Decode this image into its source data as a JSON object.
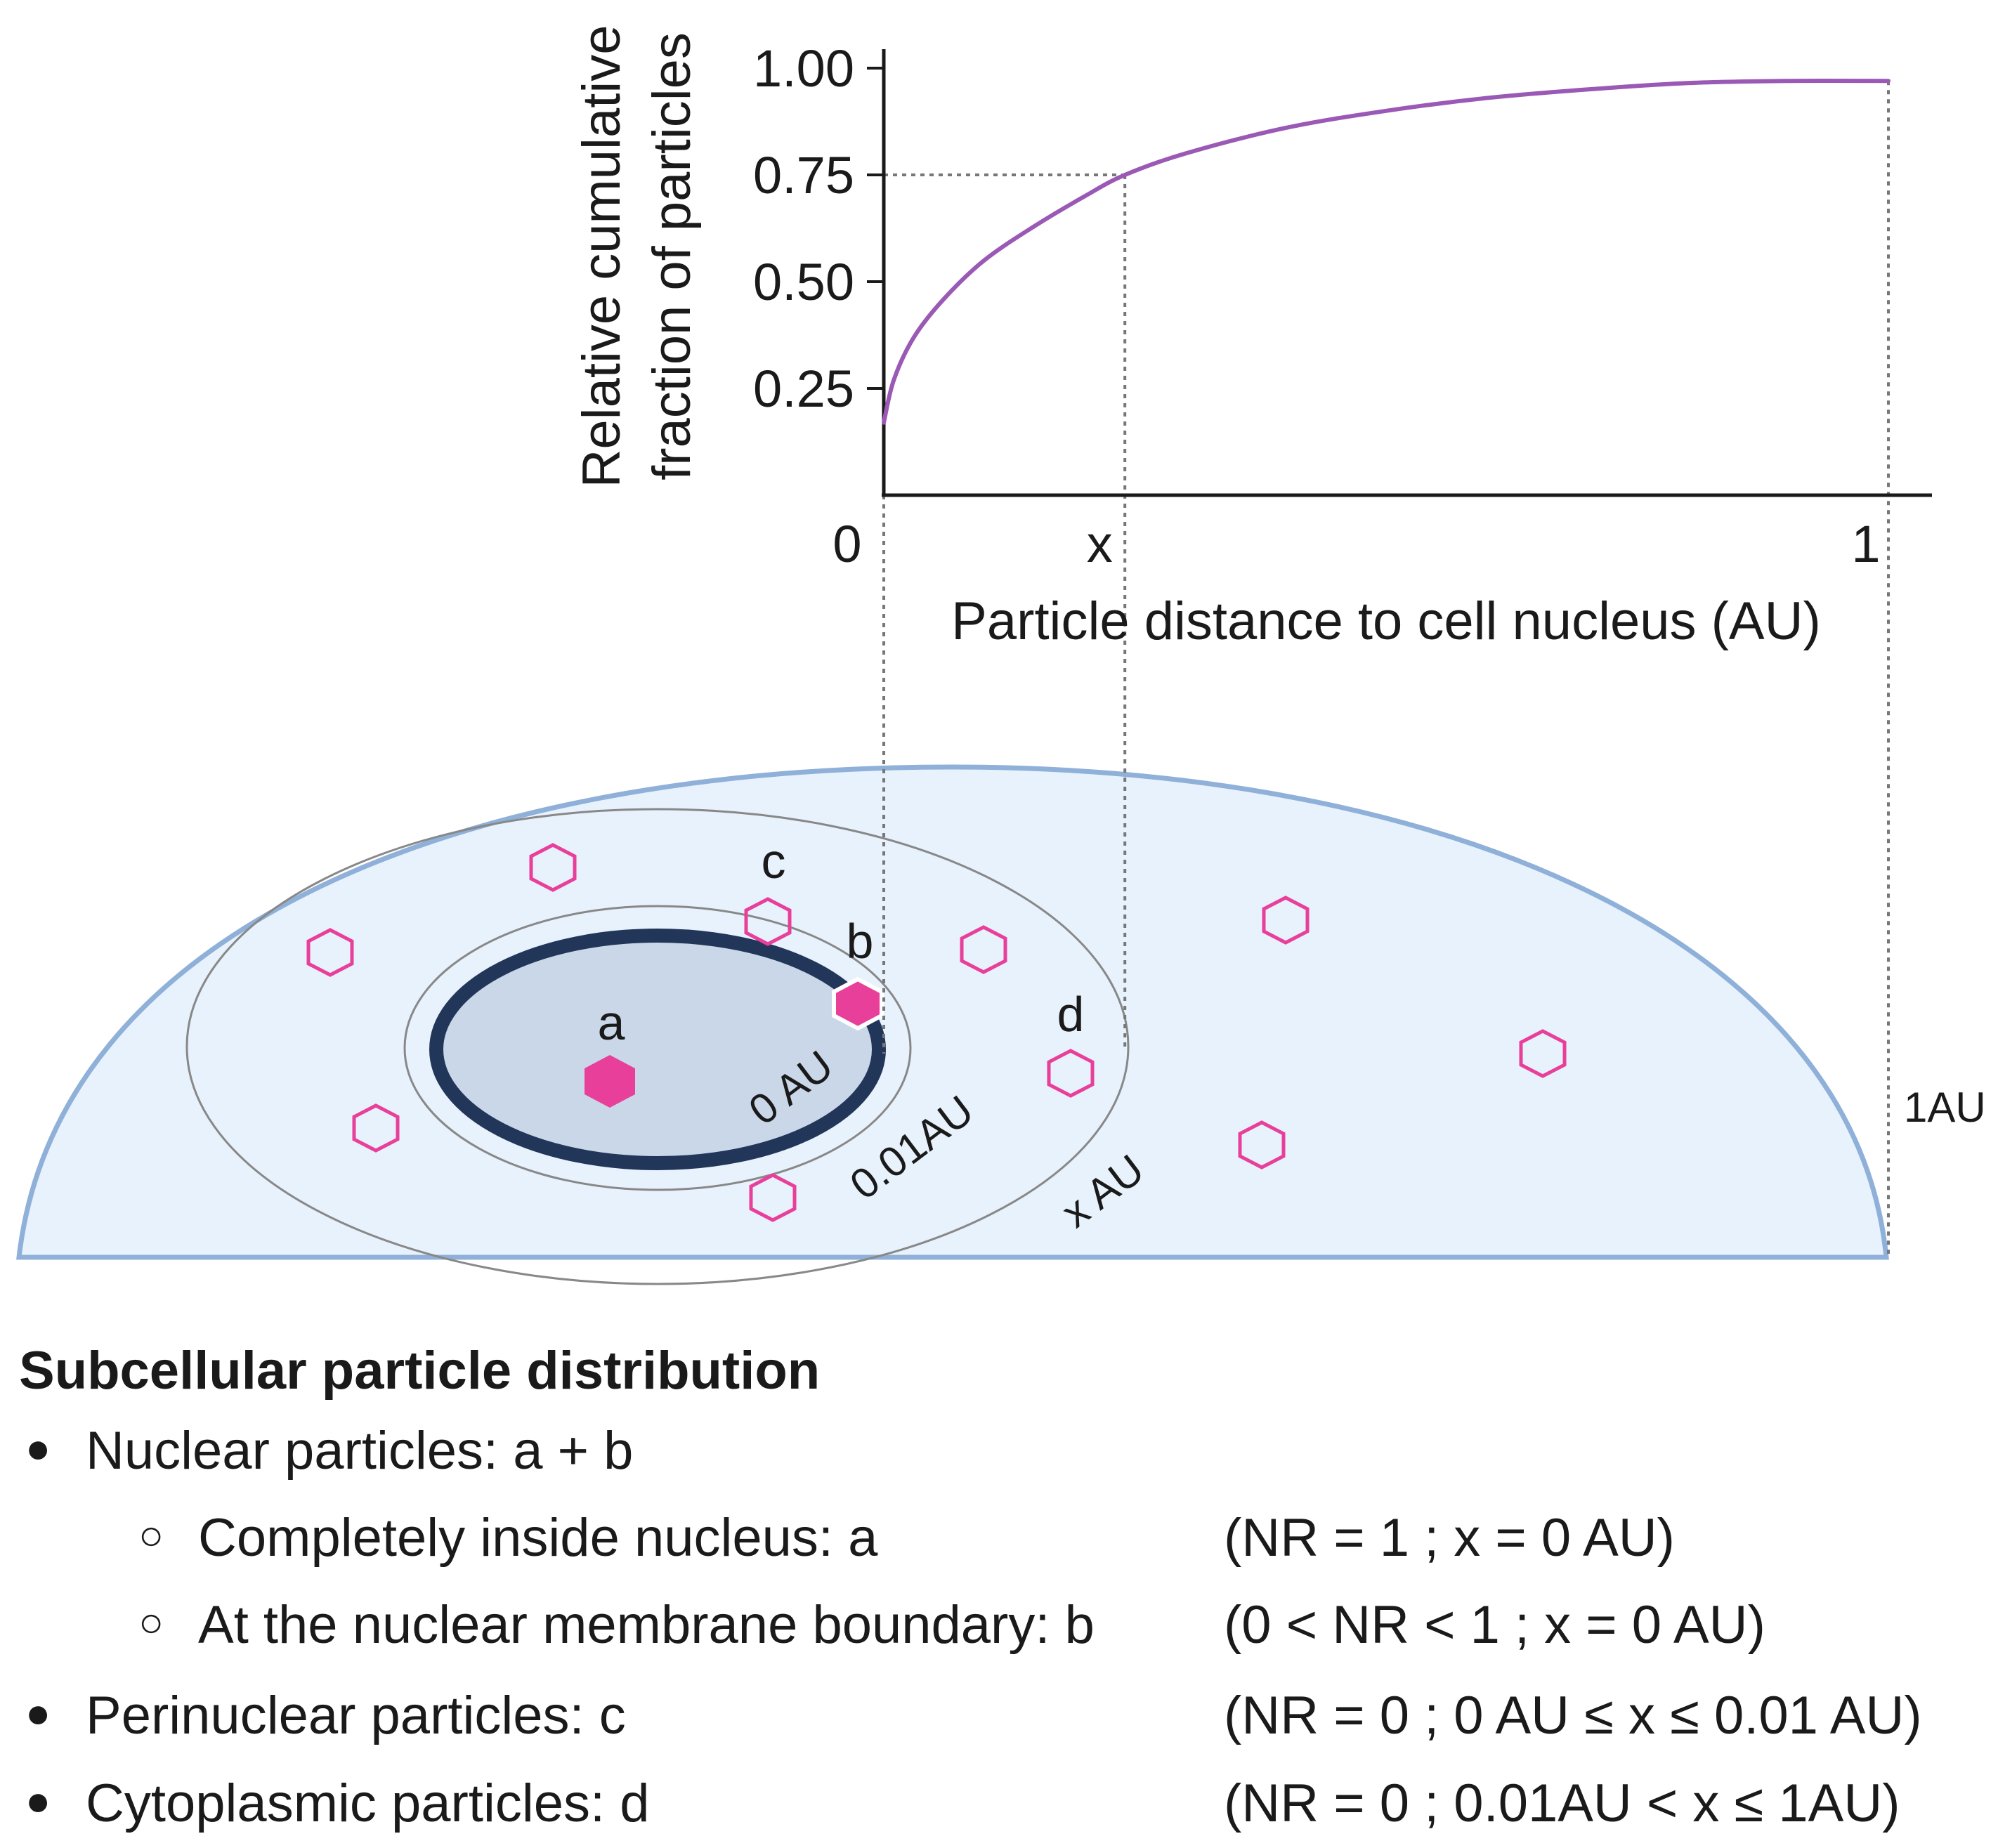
{
  "chart_data": {
    "type": "line",
    "ylabel_line1": "Relative cumulative",
    "ylabel_line2": "fraction of particles",
    "xlabel": "Particle distance to cell nucleus (AU)",
    "y_ticks": [
      "1.00",
      "0.75",
      "0.50",
      "0.25"
    ],
    "y_tick_values": [
      1.0,
      0.75,
      0.5,
      0.25
    ],
    "x_ticks": [
      "0",
      "x",
      "1"
    ],
    "x_tick_values": [
      0,
      0.24,
      1
    ],
    "ylim": [
      0,
      1.05
    ],
    "xlim": [
      0,
      1.05
    ],
    "series": [
      {
        "name": "cumulative fraction",
        "color": "#9b59b6",
        "x": [
          0,
          0.01,
          0.03,
          0.06,
          0.1,
          0.15,
          0.2,
          0.24,
          0.3,
          0.4,
          0.5,
          0.6,
          0.7,
          0.8,
          0.9,
          1.0
        ],
        "y": [
          0.17,
          0.27,
          0.37,
          0.46,
          0.55,
          0.63,
          0.7,
          0.75,
          0.8,
          0.86,
          0.9,
          0.93,
          0.95,
          0.965,
          0.97,
          0.97
        ]
      }
    ],
    "guide_y": 0.75,
    "guide_x": 0.24
  },
  "diagram": {
    "particle_labels": {
      "a": "a",
      "b": "b",
      "c": "c",
      "d": "d"
    },
    "ring_labels": {
      "nucleus": "0 AU",
      "perinuclear": "0.01AU",
      "x": "x AU",
      "cell": "1AU"
    },
    "colors": {
      "cell_fill": "#e8f2fc",
      "cell_stroke": "#8fb0d8",
      "nucleus_fill": "#cad7e8",
      "nucleus_stroke": "#22365a",
      "particle": "#e8409a",
      "ring": "#888888",
      "guide": "#777777"
    }
  },
  "legend": {
    "title": "Subcellular particle distribution",
    "items": [
      {
        "level": 1,
        "text": "Nuclear particles:  a + b",
        "condition": ""
      },
      {
        "level": 2,
        "text": "Completely inside nucleus:  a",
        "condition": "(NR = 1 ; x = 0 AU)"
      },
      {
        "level": 2,
        "text": "At the nuclear membrane boundary:  b",
        "condition": "(0 < NR < 1 ; x = 0 AU)"
      },
      {
        "level": 1,
        "text": "Perinuclear particles:  c",
        "condition": "(NR = 0 ; 0 AU ≤ x ≤ 0.01 AU)"
      },
      {
        "level": 1,
        "text": "Cytoplasmic particles:  d",
        "condition": "(NR = 0 ; 0.01AU < x ≤ 1AU)"
      }
    ]
  }
}
